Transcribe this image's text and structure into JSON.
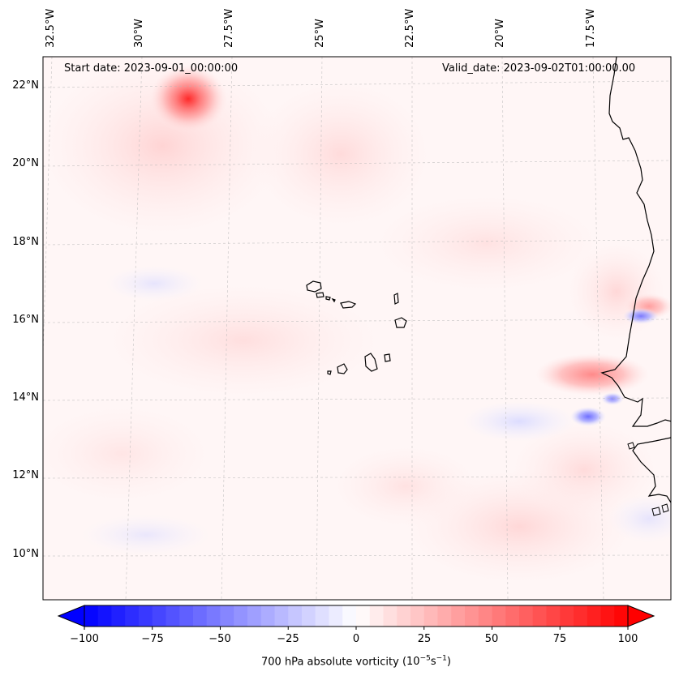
{
  "map": {
    "start_date": "Start date: 2023-09-01_00:00:00",
    "valid_date": "Valid_date: 2023-09-02T01:00:00.00",
    "lon_labels": [
      "32.5°W",
      "30°W",
      "27.5°W",
      "25°W",
      "22.5°W",
      "20°W",
      "17.5°W"
    ],
    "lat_labels": [
      "22°N",
      "20°N",
      "18°N",
      "16°N",
      "14°N",
      "12°N",
      "10°N"
    ],
    "field_name": "700 hPa absolute vorticity",
    "units_prefix": "(10",
    "units_exp1": "−5",
    "units_mid": "s",
    "units_exp2": "−1",
    "units_suffix": ")"
  },
  "colorbar": {
    "min": -100,
    "max": 100,
    "tick_labels": [
      "−100",
      "−75",
      "−50",
      "−25",
      "0",
      "25",
      "50",
      "75",
      "100"
    ],
    "colors": {
      "negative": "#0000ff",
      "zero": "#ffffff",
      "positive": "#ff0000"
    }
  }
}
